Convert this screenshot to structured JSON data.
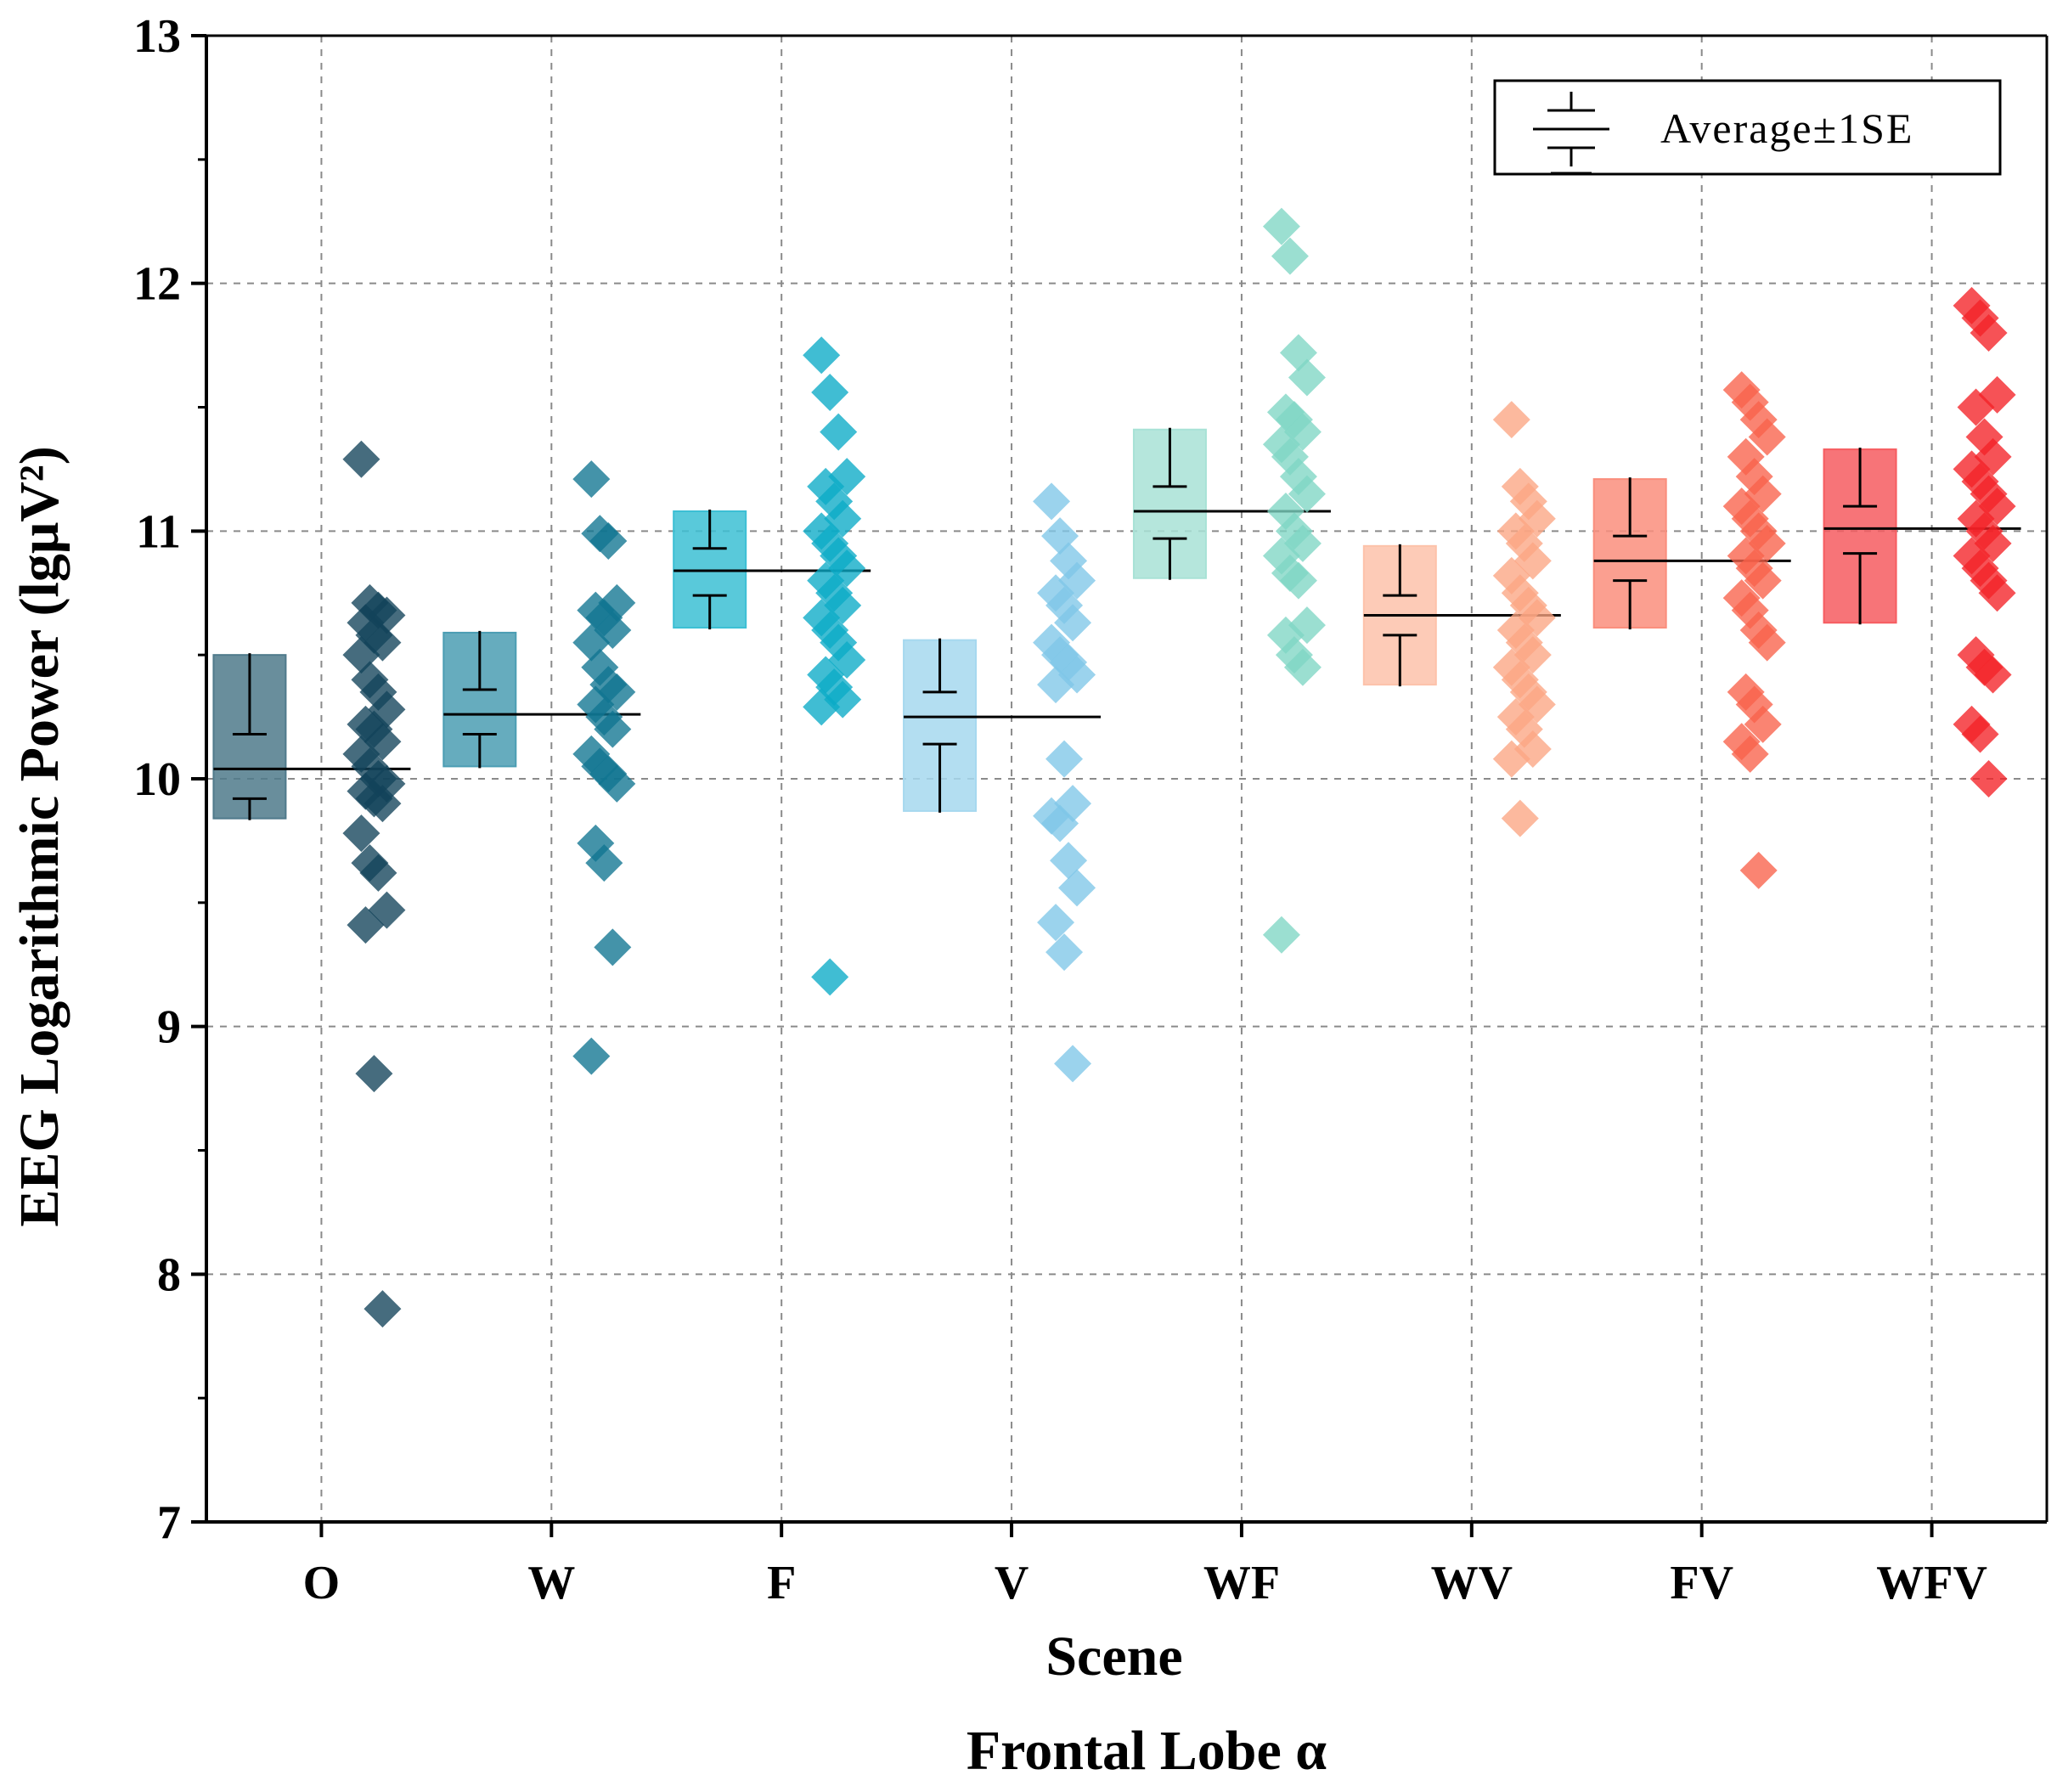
{
  "chart_data": {
    "type": "scatter",
    "title": "Frontal Lobe α",
    "xlabel": "Scene",
    "ylabel": "EEG Logarithmic Power (lgμV²)",
    "ylim": [
      7,
      13
    ],
    "yticks": [
      "7",
      "8",
      "9",
      "10",
      "11",
      "12",
      "13"
    ],
    "grid": true,
    "legend": {
      "position": "top-right",
      "label": "Average±1SE"
    },
    "categories": [
      "O",
      "W",
      "F",
      "V",
      "WF",
      "WV",
      "FV",
      "WFV"
    ],
    "series": [
      {
        "name": "O",
        "color": "#12425a",
        "box_color": "#4f7a8b",
        "mean": 10.04,
        "box_low": 9.84,
        "box_high": 10.5,
        "se_low": 9.92,
        "se_high": 10.18,
        "values": [
          11.29,
          10.71,
          10.68,
          10.66,
          10.63,
          10.58,
          10.55,
          10.5,
          10.4,
          10.35,
          10.28,
          10.22,
          10.2,
          10.15,
          10.1,
          10.05,
          10.0,
          9.98,
          9.95,
          9.92,
          9.9,
          9.78,
          9.66,
          9.62,
          9.47,
          9.41,
          8.81,
          7.86
        ]
      },
      {
        "name": "W",
        "color": "#0f7591",
        "box_color": "#4b9db3",
        "mean": 10.26,
        "box_low": 10.05,
        "box_high": 10.59,
        "se_low": 10.18,
        "se_high": 10.36,
        "values": [
          11.21,
          10.99,
          10.96,
          10.71,
          10.68,
          10.65,
          10.6,
          10.55,
          10.45,
          10.38,
          10.35,
          10.3,
          10.25,
          10.2,
          10.1,
          10.05,
          10.02,
          9.98,
          9.74,
          9.66,
          9.32,
          8.88
        ]
      },
      {
        "name": "F",
        "color": "#0aaac7",
        "box_color": "#3cbfd4",
        "mean": 10.84,
        "box_low": 10.61,
        "box_high": 11.08,
        "se_low": 10.74,
        "se_high": 10.93,
        "values": [
          11.71,
          11.56,
          11.4,
          11.22,
          11.18,
          11.12,
          11.05,
          11.0,
          10.95,
          10.9,
          10.85,
          10.8,
          10.75,
          10.7,
          10.65,
          10.6,
          10.55,
          10.48,
          10.42,
          10.37,
          10.32,
          10.29,
          9.2
        ]
      },
      {
        "name": "V",
        "color": "#7fc7e8",
        "box_color": "#a6d8ef",
        "mean": 10.25,
        "box_low": 9.87,
        "box_high": 10.56,
        "se_low": 10.14,
        "se_high": 10.35,
        "values": [
          11.12,
          10.98,
          10.88,
          10.8,
          10.75,
          10.7,
          10.63,
          10.55,
          10.5,
          10.47,
          10.42,
          10.38,
          10.08,
          9.9,
          9.85,
          9.82,
          9.67,
          9.56,
          9.42,
          9.3,
          8.85
        ]
      },
      {
        "name": "WF",
        "color": "#7fd6c4",
        "box_color": "#a8e2d6",
        "mean": 11.08,
        "box_low": 10.81,
        "box_high": 11.41,
        "se_low": 10.97,
        "se_high": 11.18,
        "values": [
          12.23,
          12.11,
          11.72,
          11.62,
          11.48,
          11.45,
          11.4,
          11.35,
          11.3,
          11.22,
          11.15,
          11.08,
          11.0,
          10.95,
          10.9,
          10.83,
          10.8,
          10.62,
          10.58,
          10.5,
          10.45,
          9.37
        ]
      },
      {
        "name": "WV",
        "color": "#fba583",
        "box_color": "#fdc2aa",
        "mean": 10.66,
        "box_low": 10.38,
        "box_high": 10.94,
        "se_low": 10.58,
        "se_high": 10.74,
        "values": [
          11.45,
          11.18,
          11.12,
          11.05,
          11.0,
          10.95,
          10.88,
          10.82,
          10.75,
          10.7,
          10.65,
          10.6,
          10.55,
          10.5,
          10.45,
          10.4,
          10.35,
          10.3,
          10.25,
          10.2,
          10.12,
          10.08,
          9.84
        ]
      },
      {
        "name": "FV",
        "color": "#f8624a",
        "box_color": "#fa8e7d",
        "mean": 10.88,
        "box_low": 10.61,
        "box_high": 11.21,
        "se_low": 10.8,
        "se_high": 10.98,
        "values": [
          11.57,
          11.52,
          11.45,
          11.38,
          11.3,
          11.22,
          11.15,
          11.1,
          11.05,
          11.0,
          10.95,
          10.9,
          10.85,
          10.8,
          10.73,
          10.68,
          10.6,
          10.55,
          10.35,
          10.3,
          10.22,
          10.15,
          10.1,
          9.63
        ]
      },
      {
        "name": "WFV",
        "color": "#f32127",
        "box_color": "#f65c60",
        "mean": 11.01,
        "box_low": 10.63,
        "box_high": 11.33,
        "se_low": 10.91,
        "se_high": 11.1,
        "values": [
          11.91,
          11.86,
          11.8,
          11.55,
          11.5,
          11.38,
          11.3,
          11.25,
          11.2,
          11.15,
          11.1,
          11.05,
          11.0,
          10.95,
          10.9,
          10.85,
          10.8,
          10.75,
          10.5,
          10.45,
          10.42,
          10.22,
          10.18,
          10.0
        ]
      }
    ]
  }
}
